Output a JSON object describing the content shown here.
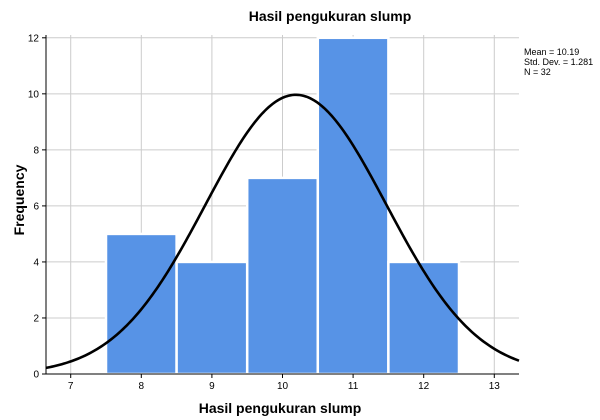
{
  "chart_data": {
    "type": "bar",
    "title": "Hasil pengukuran slump",
    "xlabel": "Hasil pengukuran slump",
    "ylabel": "Frequency",
    "x_ticks": [
      7,
      8,
      9,
      10,
      11,
      12,
      13
    ],
    "y_ticks": [
      0,
      2,
      4,
      6,
      8,
      10,
      12
    ],
    "xlim": [
      6.65,
      13.35
    ],
    "ylim": [
      0,
      12.1
    ],
    "bins": [
      {
        "start": 7.5,
        "end": 8.5,
        "value": 5
      },
      {
        "start": 8.5,
        "end": 9.5,
        "value": 4
      },
      {
        "start": 9.5,
        "end": 10.5,
        "value": 7
      },
      {
        "start": 10.5,
        "end": 11.5,
        "value": 12
      },
      {
        "start": 11.5,
        "end": 12.5,
        "value": 4
      }
    ],
    "normal_curve": {
      "mean": 10.19,
      "std": 1.281,
      "n": 32,
      "bin_width": 1
    },
    "grid": true,
    "legend": "right",
    "stats": {
      "mean_label": "Mean = 10.19",
      "std_label": "Std. Dev. = 1.281",
      "n_label": "N = 32"
    },
    "colors": {
      "bar": "#5793e6",
      "bar_edge": "#ffffff",
      "curve": "#000000",
      "grid": "#cccccc",
      "axis": "#000000"
    }
  }
}
